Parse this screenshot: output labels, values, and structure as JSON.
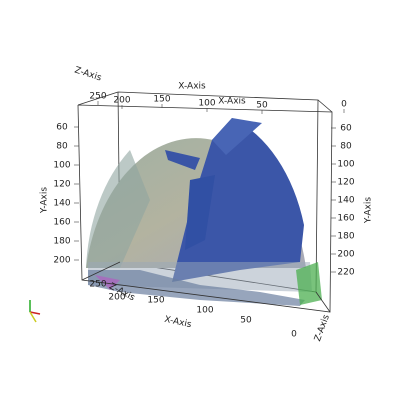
{
  "axes": {
    "x_label": "X-Axis",
    "y_label": "Y-Axis",
    "z_label": "Z-Axis",
    "top_x_ticks": [
      "250",
      "200",
      "150",
      "100",
      "50",
      "0"
    ],
    "bottom_x_ticks": [
      "250",
      "200",
      "150",
      "100",
      "50",
      "0"
    ],
    "left_y_ticks": [
      "60",
      "80",
      "100",
      "120",
      "140",
      "160",
      "180",
      "200"
    ],
    "right_y_ticks": [
      "60",
      "80",
      "100",
      "120",
      "140",
      "160",
      "180",
      "200",
      "220"
    ]
  }
}
